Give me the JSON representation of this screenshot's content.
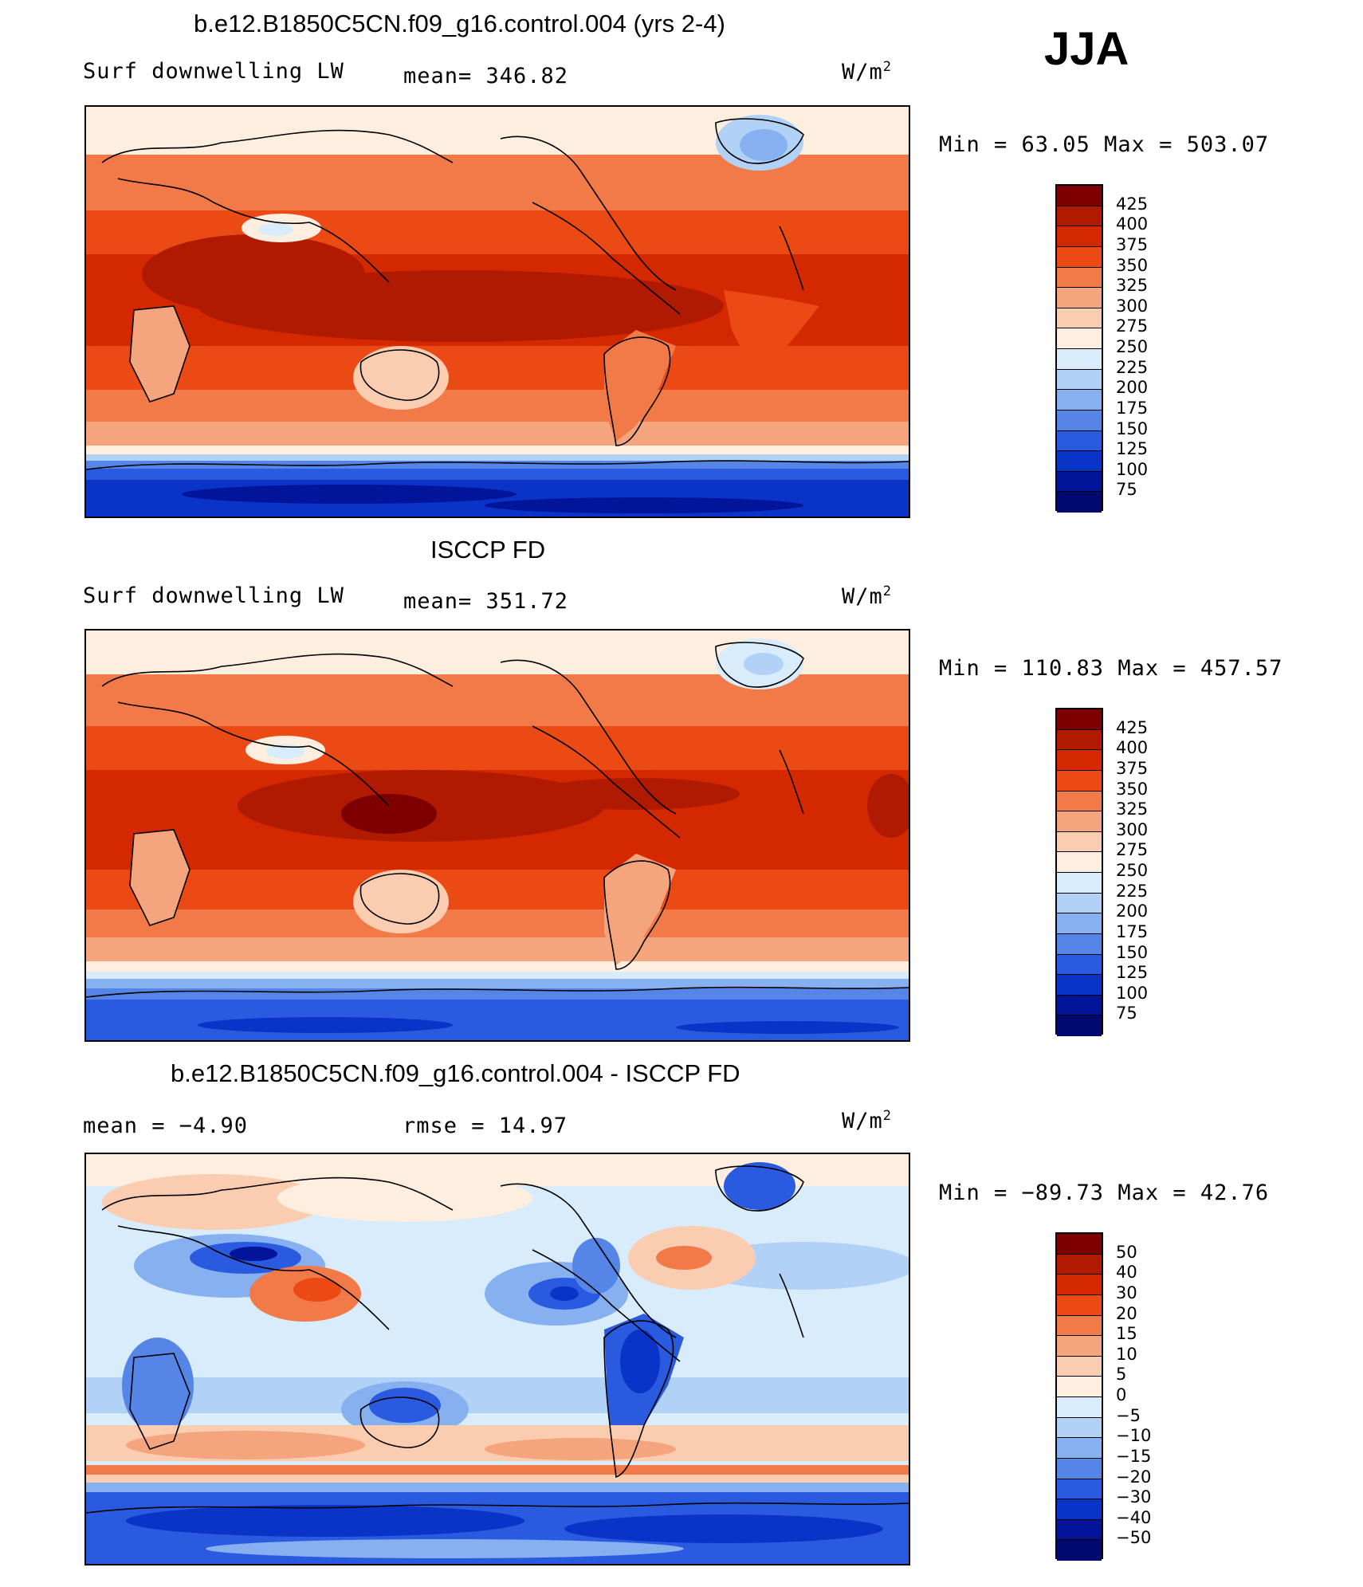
{
  "season": "JJA",
  "panels": [
    {
      "title": "b.e12.B1850C5CN.f09_g16.control.004 (yrs 2-4)",
      "variable": "Surf  downwelling LW",
      "stat_a": "mean=  346.82",
      "units": "W/m",
      "units_sup": "2",
      "minmax": "Min  =   63.05  Max  =  503.07",
      "colorbar_labels": [
        "425",
        "400",
        "375",
        "350",
        "325",
        "300",
        "275",
        "250",
        "225",
        "200",
        "175",
        "150",
        "125",
        "100",
        "75"
      ],
      "colors": [
        "#7f0000",
        "#b01a00",
        "#d42800",
        "#ec4a14",
        "#f27a48",
        "#f5a57e",
        "#fbcdb0",
        "#fdeedf",
        "#d9ecfb",
        "#b2d1f6",
        "#86b0f0",
        "#5585e6",
        "#2a5ae0",
        "#0a33c8",
        "#02149a",
        "#000a6e"
      ]
    },
    {
      "title": "ISCCP FD",
      "variable": "Surf  downwelling LW",
      "stat_a": "mean=  351.72",
      "units": "W/m",
      "units_sup": "2",
      "minmax": "Min  =  110.83  Max  =  457.57",
      "colorbar_labels": [
        "425",
        "400",
        "375",
        "350",
        "325",
        "300",
        "275",
        "250",
        "225",
        "200",
        "175",
        "150",
        "125",
        "100",
        "75"
      ],
      "colors": [
        "#7f0000",
        "#b01a00",
        "#d42800",
        "#ec4a14",
        "#f27a48",
        "#f5a57e",
        "#fbcdb0",
        "#fdeedf",
        "#d9ecfb",
        "#b2d1f6",
        "#86b0f0",
        "#5585e6",
        "#2a5ae0",
        "#0a33c8",
        "#02149a",
        "#000a6e"
      ]
    },
    {
      "title": "b.e12.B1850C5CN.f09_g16.control.004 - ISCCP FD",
      "variable": "",
      "stat_a": "mean  =    −4.90",
      "stat_b": "rmse  =    14.97",
      "units": "W/m",
      "units_sup": "2",
      "minmax": "Min  =  −89.73  Max  =    42.76",
      "colorbar_labels": [
        "50",
        "40",
        "30",
        "20",
        "15",
        "10",
        "5",
        "0",
        "−5",
        "−10",
        "−15",
        "−20",
        "−30",
        "−40",
        "−50"
      ],
      "colors": [
        "#7f0000",
        "#b01a00",
        "#d42800",
        "#ec4a14",
        "#f27a48",
        "#f5a57e",
        "#fbcdb0",
        "#fdeedf",
        "#d9ecfb",
        "#b2d1f6",
        "#86b0f0",
        "#5585e6",
        "#2a5ae0",
        "#0a33c8",
        "#02149a",
        "#000a6e"
      ]
    }
  ]
}
